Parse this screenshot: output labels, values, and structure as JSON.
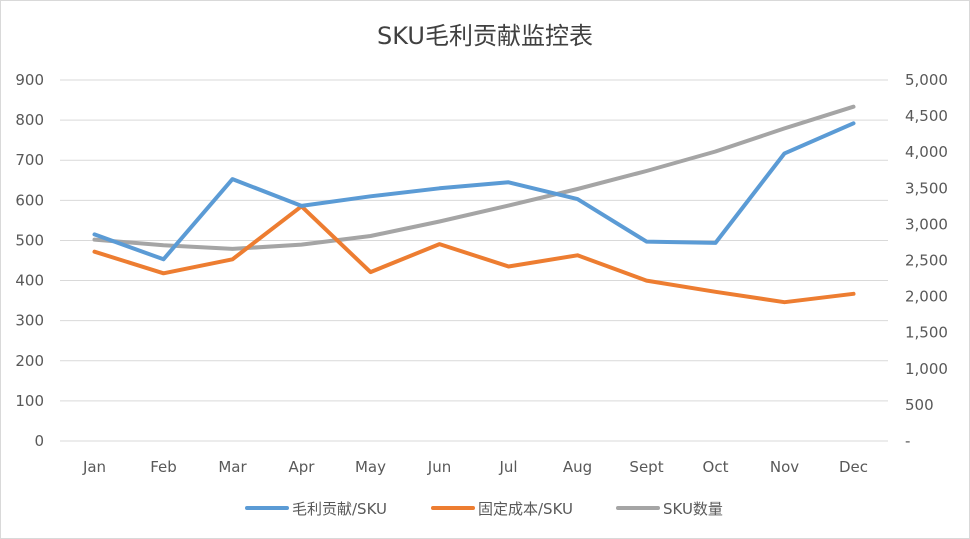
{
  "chart_data": {
    "type": "line",
    "title": "SKU毛利贡献监控表",
    "categories": [
      "Jan",
      "Feb",
      "Mar",
      "Apr",
      "May",
      "Jun",
      "Jul",
      "Aug",
      "Sept",
      "Oct",
      "Nov",
      "Dec"
    ],
    "y_left": {
      "ylim": [
        0,
        900
      ],
      "ticks": [
        "0",
        "100",
        "200",
        "300",
        "400",
        "500",
        "600",
        "700",
        "800",
        "900"
      ]
    },
    "y_right": {
      "ylim": [
        0,
        5000
      ],
      "ticks": [
        "-",
        "500",
        "1,000",
        "1,500",
        "2,000",
        "2,500",
        "3,000",
        "3,500",
        "4,000",
        "4,500",
        "5,000"
      ]
    },
    "grid": true,
    "legend_position": "bottom",
    "series": [
      {
        "name": "毛利贡献/SKU",
        "axis": "left",
        "color": "#5b9bd5",
        "values": [
          515,
          453,
          653,
          586,
          610,
          630,
          645,
          603,
          497,
          494,
          717,
          792
        ]
      },
      {
        "name": "固定成本/SKU",
        "axis": "left",
        "color": "#ed7d31",
        "values": [
          472,
          418,
          453,
          585,
          421,
          491,
          435,
          463,
          400,
          372,
          346,
          367
        ]
      },
      {
        "name": "SKU数量",
        "axis": "right",
        "color": "#a5a5a5",
        "values": [
          2790,
          2710,
          2660,
          2720,
          2840,
          3040,
          3260,
          3490,
          3740,
          4010,
          4330,
          4630
        ]
      }
    ]
  }
}
